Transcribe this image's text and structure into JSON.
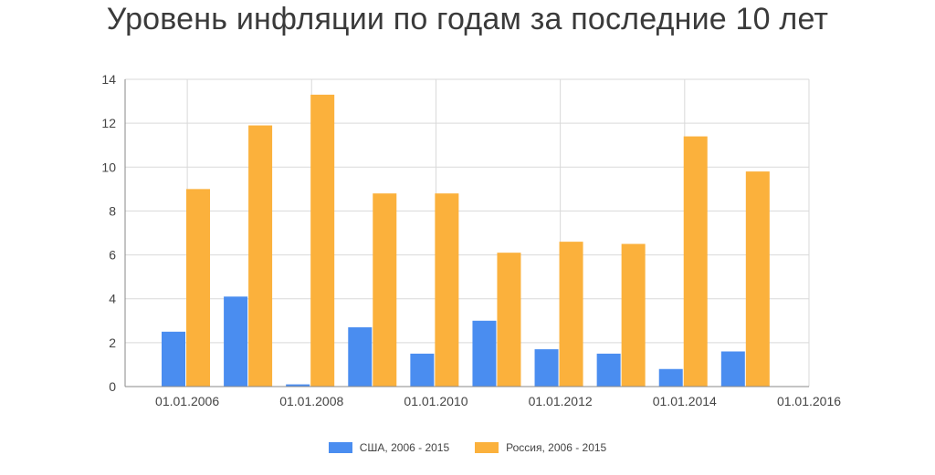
{
  "chart_data": {
    "type": "bar",
    "title": "Уровень инфляции по годам за последние 10 лет",
    "x_tick_labels": [
      "01.01.2006",
      "01.01.2008",
      "01.01.2010",
      "01.01.2012",
      "01.01.2014",
      "01.01.2016"
    ],
    "y_ticks": [
      0,
      2,
      4,
      6,
      8,
      10,
      12,
      14
    ],
    "ylim": [
      0,
      14
    ],
    "grid": true,
    "legend_position": "bottom",
    "categories": [
      "2006",
      "2007",
      "2008",
      "2009",
      "2010",
      "2011",
      "2012",
      "2013",
      "2014",
      "2015"
    ],
    "series": [
      {
        "name": "США, 2006 - 2015",
        "color": "#4a8df0",
        "values": [
          2.5,
          4.1,
          0.1,
          2.7,
          1.5,
          3.0,
          1.7,
          1.5,
          0.8,
          1.6
        ]
      },
      {
        "name": "Россия, 2006 - 2015",
        "color": "#fbb13c",
        "values": [
          9.0,
          11.9,
          13.3,
          8.8,
          8.8,
          6.1,
          6.6,
          6.5,
          11.4,
          9.8
        ]
      }
    ]
  }
}
